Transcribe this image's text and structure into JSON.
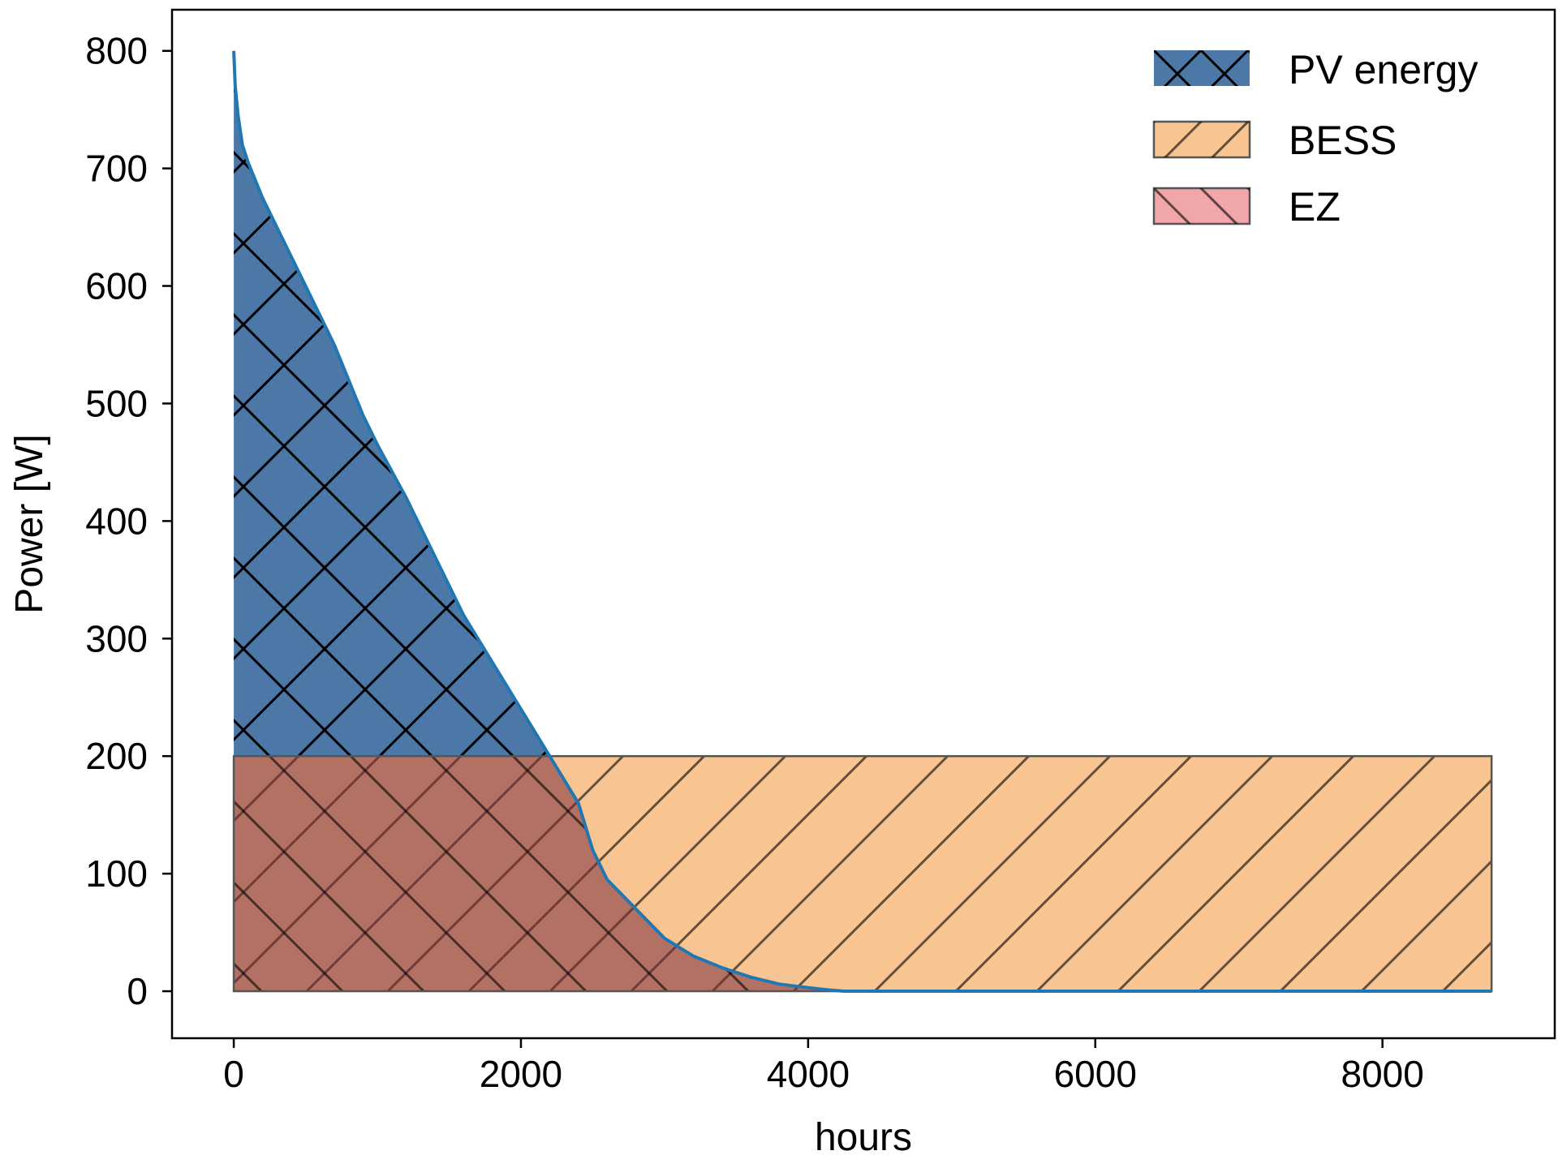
{
  "chart_data": {
    "type": "area",
    "title": "",
    "xlabel": "hours",
    "ylabel": "Power [W]",
    "xlim": [
      -430,
      9200
    ],
    "ylim": [
      -40,
      835
    ],
    "xticks": [
      0,
      2000,
      4000,
      6000,
      8000
    ],
    "yticks": [
      0,
      100,
      200,
      300,
      400,
      500,
      600,
      700,
      800
    ],
    "grid": false,
    "legend_position": "top-right",
    "threshold": 200,
    "x_max": 8760,
    "series": [
      {
        "name": "PV energy",
        "kind": "area-under-curve",
        "color": "#4c78a8",
        "line_color": "#1f77b4",
        "hatch": "cross",
        "x": [
          0,
          10,
          30,
          60,
          100,
          150,
          200,
          300,
          400,
          500,
          600,
          700,
          800,
          900,
          1000,
          1200,
          1400,
          1600,
          1800,
          2000,
          2200,
          2400,
          2500,
          2600,
          2800,
          3000,
          3200,
          3400,
          3600,
          3800,
          4000,
          4150,
          4250,
          5000,
          6000,
          7000,
          8000,
          8760
        ],
        "y": [
          800,
          770,
          745,
          720,
          705,
          690,
          675,
          650,
          625,
          600,
          575,
          550,
          520,
          490,
          465,
          420,
          370,
          320,
          280,
          240,
          200,
          160,
          120,
          95,
          70,
          45,
          30,
          20,
          12,
          6,
          3,
          1,
          0,
          0,
          0,
          0,
          0,
          0
        ]
      },
      {
        "name": "BESS",
        "kind": "band",
        "color": "#f8c592",
        "hatch": "forward-diagonal",
        "x_range": [
          0,
          8760
        ],
        "y_range": [
          0,
          200
        ]
      },
      {
        "name": "EZ",
        "kind": "area-under-min",
        "color": "#f1a7a9",
        "hatch": "back-diagonal",
        "y_cap": 200
      }
    ]
  }
}
